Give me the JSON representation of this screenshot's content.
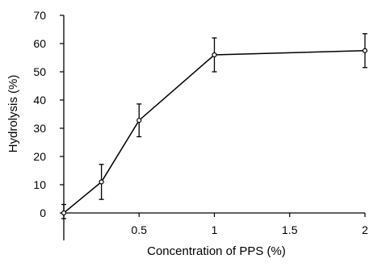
{
  "chart_data": {
    "type": "line",
    "title": "",
    "xlabel": "Concentration of PPS (%)",
    "ylabel": "Hydrolysis (%)",
    "x_ticks": [
      {
        "value": 0.5,
        "label": "0.5"
      },
      {
        "value": 1,
        "label": "1"
      },
      {
        "value": 1.5,
        "label": "1.5"
      },
      {
        "value": 2,
        "label": "2"
      }
    ],
    "y_ticks": [
      {
        "value": 0,
        "label": "0"
      },
      {
        "value": 10,
        "label": "10"
      },
      {
        "value": 20,
        "label": "20"
      },
      {
        "value": 30,
        "label": "30"
      },
      {
        "value": 40,
        "label": "40"
      },
      {
        "value": 50,
        "label": "50"
      },
      {
        "value": 60,
        "label": "60"
      },
      {
        "value": 70,
        "label": "70"
      }
    ],
    "xlim": [
      0,
      2
    ],
    "ylim": [
      0,
      70
    ],
    "grid": false,
    "series": [
      {
        "x": [
          0,
          0.25,
          0.5,
          1,
          2
        ],
        "y": [
          0,
          11,
          32.8,
          56,
          57.5
        ],
        "error": [
          3,
          6.2,
          5.8,
          6,
          6
        ]
      }
    ]
  }
}
